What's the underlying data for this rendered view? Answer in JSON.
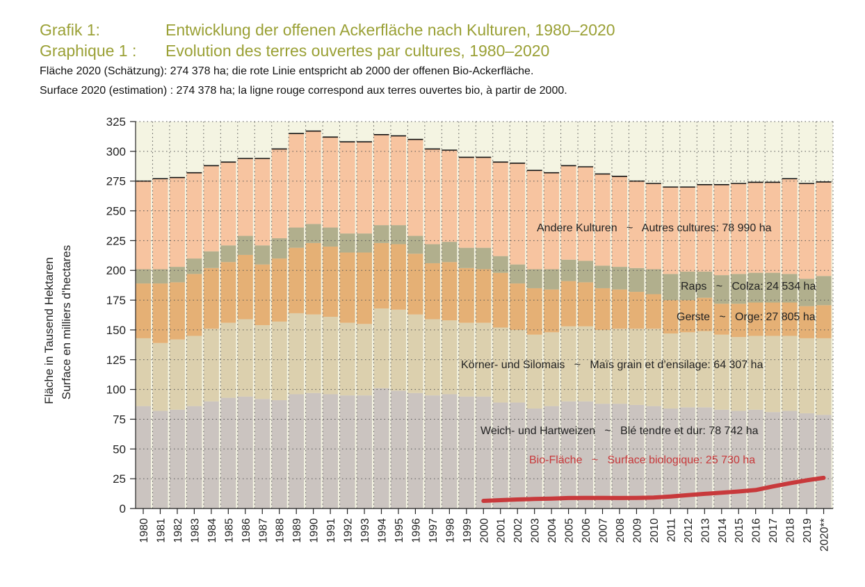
{
  "header": {
    "title_de_label": "Grafik 1:",
    "title_de": "Entwicklung der offenen Ackerfläche nach Kulturen, 1980–2020",
    "title_fr_label": "Graphique 1 :",
    "title_fr": "Evolution des terres ouvertes par cultures, 1980–2020",
    "subtitle_de": "Fläche 2020 (Schätzung): 274 378 ha; die rote Linie entspricht ab 2000 der offenen Bio-Ackerfläche.",
    "subtitle_fr": "Surface 2020 (estimation) : 274 378 ha; la ligne rouge correspond aux terres ouvertes bio, à partir de 2000."
  },
  "chart_data": {
    "type": "bar",
    "stacked": true,
    "ylabel_de": "Fläche in Tausend Hektaren",
    "ylabel_fr": "Surface en milliers d'hectares",
    "ylim": [
      0,
      325
    ],
    "yticks": [
      0,
      25,
      50,
      75,
      100,
      125,
      150,
      175,
      200,
      225,
      250,
      275,
      300,
      325
    ],
    "grid": true,
    "categories": [
      "1980",
      "1981",
      "1982",
      "1983",
      "1984",
      "1985",
      "1986",
      "1987",
      "1988",
      "1989",
      "1990",
      "1991",
      "1992",
      "1993",
      "1994",
      "1995",
      "1996",
      "1997",
      "1998",
      "1999",
      "2000",
      "2001",
      "2002",
      "2003",
      "2004",
      "2005",
      "2006",
      "2007",
      "2008",
      "2009",
      "2010",
      "2011",
      "2012",
      "2013",
      "2014",
      "2015",
      "2016",
      "2017",
      "2018",
      "2019",
      "2020**"
    ],
    "series": [
      {
        "name": "Weich- und Hartweizen ~ Blé tendre et dur: 78 742 ha",
        "color": "#cbc4c0",
        "values": [
          86,
          82,
          83,
          86,
          90,
          93,
          94,
          92,
          91,
          96,
          97,
          96,
          95,
          95,
          101,
          99,
          97,
          95,
          96,
          94,
          94,
          89,
          89,
          84,
          86,
          90,
          90,
          88,
          88,
          87,
          86,
          84,
          85,
          85,
          83,
          82,
          83,
          81,
          82,
          80,
          78.7
        ]
      },
      {
        "name": "Körner- und Silomais ~ Maïs grain et d'ensilage: 64 307 ha",
        "color": "#dcd0ae",
        "values": [
          57,
          57,
          59,
          59,
          61,
          63,
          65,
          62,
          66,
          68,
          66,
          65,
          61,
          60,
          67,
          68,
          66,
          64,
          62,
          62,
          62,
          63,
          61,
          62,
          62,
          63,
          63,
          62,
          63,
          64,
          65,
          63,
          63,
          64,
          63,
          62,
          62,
          64,
          63,
          63,
          64.3
        ]
      },
      {
        "name": "Gerste ~ Orge: 27 805 ha",
        "color": "#e5b075",
        "values": [
          46,
          50,
          48,
          52,
          51,
          51,
          54,
          51,
          53,
          55,
          60,
          59,
          59,
          60,
          55,
          55,
          51,
          47,
          49,
          46,
          45,
          46,
          39,
          39,
          36,
          38,
          37,
          35,
          33,
          31,
          29,
          28,
          27,
          28,
          26,
          28,
          28,
          28,
          28,
          27,
          27.8
        ]
      },
      {
        "name": "Raps ~ Colza: 24 534 ha",
        "color": "#b1af8d",
        "values": [
          12,
          12,
          13,
          13,
          14,
          14,
          16,
          16,
          17,
          17,
          16,
          16,
          16,
          16,
          15,
          16,
          15,
          16,
          17,
          17,
          18,
          14,
          16,
          16,
          17,
          18,
          18,
          19,
          19,
          20,
          21,
          22,
          24,
          22,
          24,
          25,
          25,
          25,
          24,
          23,
          24.5
        ]
      },
      {
        "name": "Andere Kulturen ~ Autres cultures: 78 990 ha",
        "color": "#f7c4a0",
        "values": [
          74,
          76,
          75,
          72,
          72,
          70,
          65,
          73,
          75,
          79,
          78,
          76,
          77,
          77,
          76,
          75,
          81,
          80,
          77,
          76,
          76,
          79,
          85,
          83,
          81,
          79,
          79,
          77,
          76,
          73,
          72,
          73,
          71,
          73,
          76,
          76,
          76,
          76,
          80,
          80,
          79.0
        ]
      }
    ],
    "bio_line": {
      "name": "Bio-Fläche ~ Surface biologique: 25 730 ha",
      "color": "#c8393b",
      "x": [
        "2000",
        "2001",
        "2002",
        "2003",
        "2004",
        "2005",
        "2006",
        "2007",
        "2008",
        "2009",
        "2010",
        "2011",
        "2012",
        "2013",
        "2014",
        "2015",
        "2016",
        "2017",
        "2018",
        "2019",
        "2020**"
      ],
      "values": [
        6.4,
        7.0,
        7.6,
        8.0,
        8.3,
        8.8,
        8.9,
        8.9,
        8.8,
        8.9,
        9.2,
        10.1,
        11.2,
        12.3,
        13.3,
        14.3,
        15.5,
        18.5,
        21.2,
        23.7,
        25.73
      ]
    },
    "annotations": {
      "andere": "Andere Kulturen   ~   Autres cultures: 78 990 ha",
      "raps": "Raps   ~   Colza: 24 534 ha",
      "gerste": "Gerste   ~   Orge: 27 805 ha",
      "mais": "Körner- und Silomais   ~   Maïs grain et d’ensilage: 64 307 ha",
      "weizen": "Weich- und Hartweizen   ~   Blé tendre et dur: 78 742 ha",
      "bio": "Bio-Fläche   ~   Surface biologique: 25 730 ha"
    }
  }
}
